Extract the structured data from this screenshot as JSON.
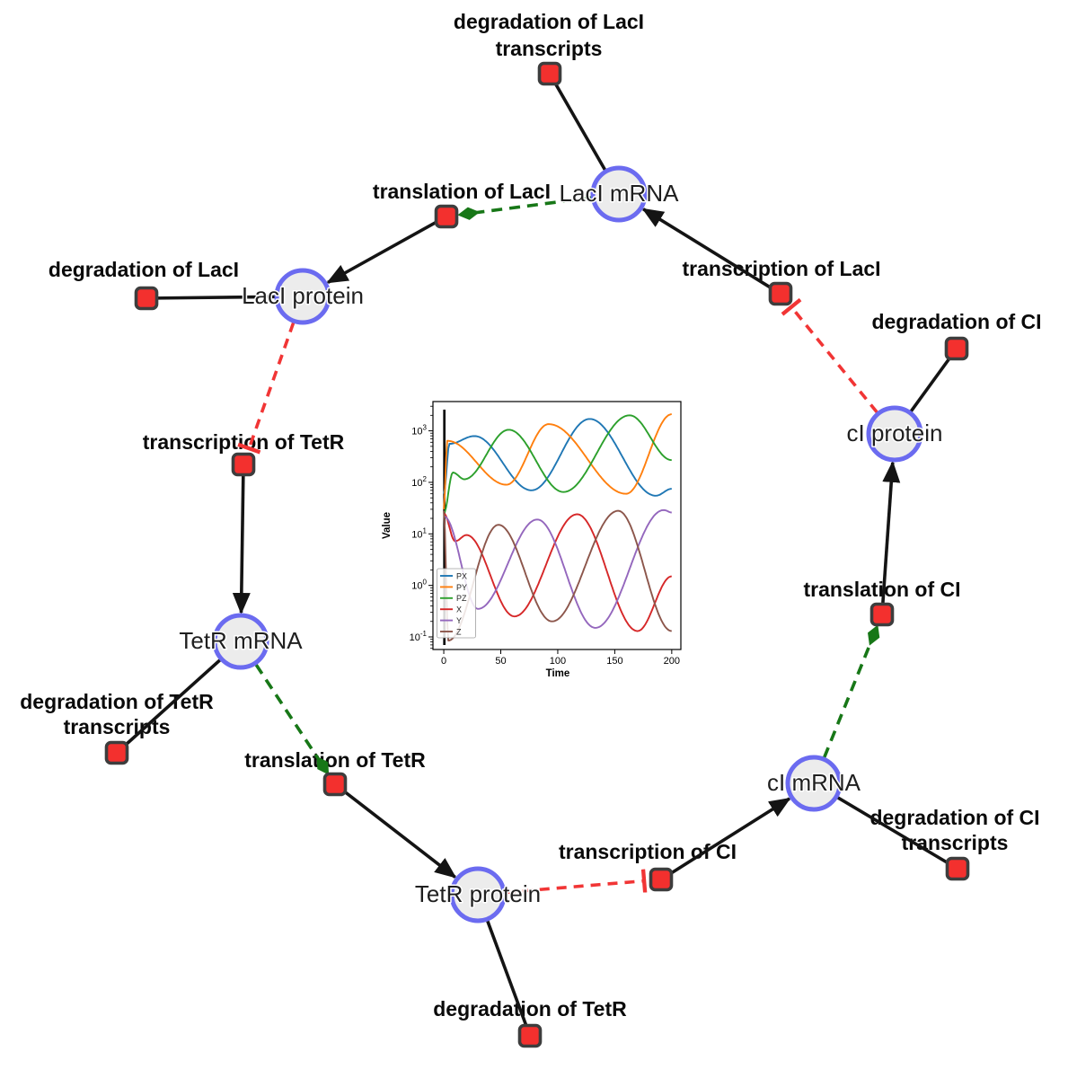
{
  "net": {
    "species": {
      "laci_mrna": "LacI mRNA",
      "laci_protein": "LacI protein",
      "tetr_mrna": "TetR mRNA",
      "tetr_protein": "TetR protein",
      "ci_mrna": "cI mRNA",
      "ci_protein": "cI protein"
    },
    "reactions": {
      "deg_laci_tx": [
        "degradation of LacI",
        "transcripts"
      ],
      "translation_laci": [
        "translation of LacI"
      ],
      "deg_laci": [
        "degradation of LacI"
      ],
      "transcription_tetr": [
        "transcription of TetR"
      ],
      "deg_tetr_tx": [
        "degradation of TetR",
        "transcripts"
      ],
      "translation_tetr": [
        "translation of TetR"
      ],
      "deg_tetr": [
        "degradation of TetR"
      ],
      "transcription_ci": [
        "transcription of CI"
      ],
      "deg_ci_tx": [
        "degradation of CI",
        "transcripts"
      ],
      "translation_ci": [
        "translation of CI"
      ],
      "deg_ci": [
        "degradation of CI"
      ],
      "transcription_laci": [
        "transcription of LacI"
      ]
    },
    "edges": [
      {
        "from": "laci_mrna",
        "to": "deg_laci_tx",
        "type": "link"
      },
      {
        "from": "laci_mrna",
        "to": "translation_laci",
        "type": "modifier"
      },
      {
        "from": "translation_laci",
        "to": "laci_protein",
        "type": "production"
      },
      {
        "from": "laci_protein",
        "to": "deg_laci",
        "type": "link"
      },
      {
        "from": "laci_protein",
        "to": "transcription_tetr",
        "type": "inhibition"
      },
      {
        "from": "transcription_tetr",
        "to": "tetr_mrna",
        "type": "production"
      },
      {
        "from": "tetr_mrna",
        "to": "deg_tetr_tx",
        "type": "link"
      },
      {
        "from": "tetr_mrna",
        "to": "translation_tetr",
        "type": "modifier"
      },
      {
        "from": "translation_tetr",
        "to": "tetr_protein",
        "type": "production"
      },
      {
        "from": "tetr_protein",
        "to": "deg_tetr",
        "type": "link"
      },
      {
        "from": "tetr_protein",
        "to": "transcription_ci",
        "type": "inhibition"
      },
      {
        "from": "transcription_ci",
        "to": "ci_mrna",
        "type": "production"
      },
      {
        "from": "ci_mrna",
        "to": "deg_ci_tx",
        "type": "link"
      },
      {
        "from": "ci_mrna",
        "to": "translation_ci",
        "type": "modifier"
      },
      {
        "from": "translation_ci",
        "to": "ci_protein",
        "type": "production"
      },
      {
        "from": "ci_protein",
        "to": "deg_ci",
        "type": "link"
      },
      {
        "from": "ci_protein",
        "to": "transcription_laci",
        "type": "inhibition"
      }
    ],
    "colors": {
      "species_fill": "#ececec",
      "species_border": "#6b6bf0",
      "reaction_fill": "#f3302e",
      "reaction_border": "#3d3d3d",
      "edge": "#141414",
      "modifier_edge": "#177717",
      "inhibition_edge": "#f13535"
    }
  },
  "chart_data": {
    "type": "line",
    "title": "",
    "xlabel": "Time",
    "ylabel": "Value",
    "xlim": [
      -9.5,
      208
    ],
    "yscale": "log",
    "ylim": [
      0.057,
      3700
    ],
    "x_ticks": [
      0,
      50,
      100,
      150,
      200
    ],
    "y_tick_exponents": [
      -1,
      0,
      1,
      2,
      3
    ],
    "grid": false,
    "legend_position": "lower left",
    "vline": {
      "x": 0.5,
      "color": "#000000"
    },
    "series": [
      {
        "name": "PX",
        "color": "#1f77b4",
        "keypoints": [
          [
            0,
            60
          ],
          [
            5,
            560
          ],
          [
            27,
            790
          ],
          [
            77,
            70
          ],
          [
            128,
            1700
          ],
          [
            186,
            55
          ],
          [
            200,
            75
          ]
        ]
      },
      {
        "name": "PY",
        "color": "#ff7f0e",
        "keypoints": [
          [
            0,
            30
          ],
          [
            3,
            640
          ],
          [
            55,
            90
          ],
          [
            92,
            1350
          ],
          [
            160,
            60
          ],
          [
            200,
            2100
          ]
        ]
      },
      {
        "name": "PZ",
        "color": "#2ca02c",
        "keypoints": [
          [
            0,
            25
          ],
          [
            8,
            155
          ],
          [
            18,
            115
          ],
          [
            57,
            1050
          ],
          [
            105,
            65
          ],
          [
            163,
            2000
          ],
          [
            200,
            270
          ]
        ]
      },
      {
        "name": "X",
        "color": "#d62728",
        "keypoints": [
          [
            0,
            25
          ],
          [
            10,
            7.2
          ],
          [
            20,
            9.5
          ],
          [
            62,
            0.25
          ],
          [
            117,
            24
          ],
          [
            170,
            0.13
          ],
          [
            200,
            1.5
          ]
        ]
      },
      {
        "name": "Y",
        "color": "#9467bd",
        "keypoints": [
          [
            0,
            22
          ],
          [
            30,
            0.35
          ],
          [
            82,
            19
          ],
          [
            133,
            0.15
          ],
          [
            193,
            29
          ],
          [
            200,
            26
          ]
        ]
      },
      {
        "name": "Z",
        "color": "#8c564b",
        "keypoints": [
          [
            0,
            28
          ],
          [
            4,
            0.085
          ],
          [
            48,
            15
          ],
          [
            95,
            0.2
          ],
          [
            153,
            28
          ],
          [
            200,
            0.13
          ]
        ]
      }
    ]
  }
}
